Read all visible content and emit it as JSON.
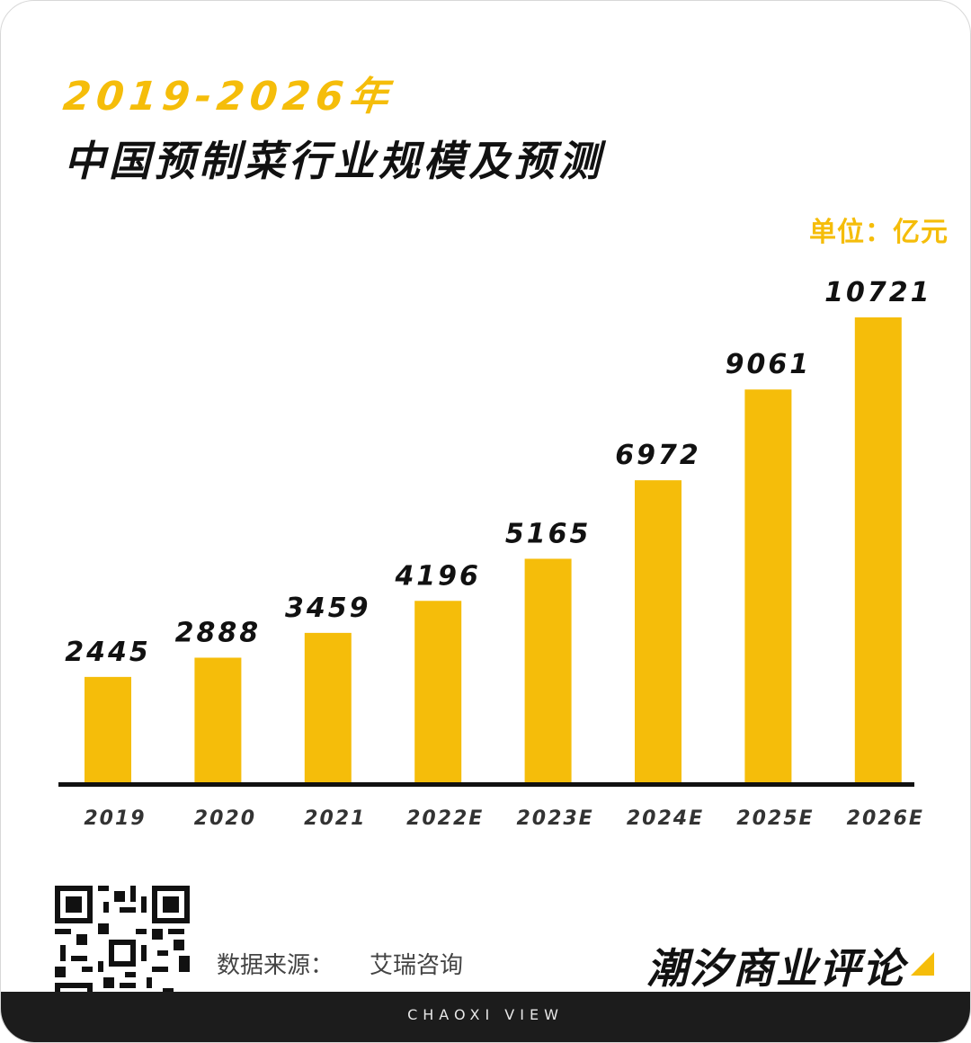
{
  "header": {
    "title_line1": "2019-2026年",
    "title_line2": "中国预制菜行业规模及预测",
    "unit": "单位：亿元"
  },
  "chart_data": {
    "type": "bar",
    "title": "2019-2026年 中国预制菜行业规模及预测",
    "categories": [
      "2019",
      "2020",
      "2021",
      "2022E",
      "2023E",
      "2024E",
      "2025E",
      "2026E"
    ],
    "values": [
      2445,
      2888,
      3459,
      4196,
      5165,
      6972,
      9061,
      10721
    ],
    "ylabel": "单位：亿元",
    "ylim": [
      0,
      10721
    ],
    "bar_color": "#f5bd0a",
    "grid": false,
    "legend": "none"
  },
  "footer": {
    "source_label": "数据来源：",
    "source_value": "艾瑞咨询",
    "brand": "潮汐商业评论",
    "tagline": "CHAOXI VIEW"
  },
  "colors": {
    "accent": "#f5bd0a",
    "text": "#111111",
    "footer_bg": "#1c1c1c"
  },
  "icons": {
    "qr": "qr-code-icon",
    "brand_mark": "brand-triangle-icon"
  }
}
